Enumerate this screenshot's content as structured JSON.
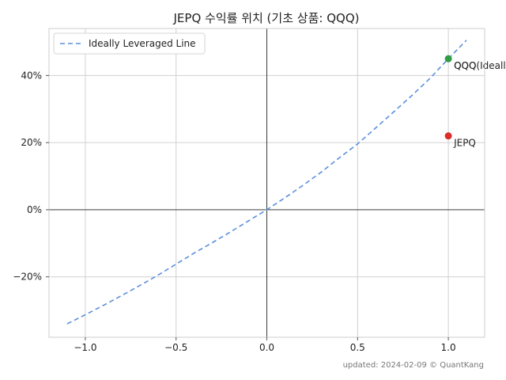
{
  "chart_data": {
    "type": "scatter",
    "title": "JEPQ 수익률 위치 (기초 상품: QQQ)",
    "xlabel": "",
    "ylabel": "",
    "xlim": [
      -1.2,
      1.2
    ],
    "ylim": [
      -38,
      54
    ],
    "x_ticks": [
      -1.0,
      -0.5,
      0.0,
      0.5,
      1.0
    ],
    "x_tick_labels": [
      "−1.0",
      "−0.5",
      "0.0",
      "0.5",
      "1.0"
    ],
    "y_ticks": [
      -20,
      0,
      20,
      40
    ],
    "y_tick_labels": [
      "−20%",
      "0%",
      "20%",
      "40%"
    ],
    "grid": true,
    "legend_position": "upper-left",
    "series": [
      {
        "name": "Ideally Leveraged Line",
        "kind": "dashed-line",
        "color": "#5b8fdb",
        "x": [
          -1.1,
          -1.0,
          -0.9,
          -0.8,
          -0.7,
          -0.6,
          -0.5,
          -0.4,
          -0.3,
          -0.2,
          -0.1,
          0.0,
          0.1,
          0.2,
          0.3,
          0.4,
          0.5,
          0.6,
          0.7,
          0.8,
          0.9,
          1.0,
          1.1
        ],
        "y": [
          -34.0,
          -31.3,
          -28.5,
          -25.6,
          -22.6,
          -19.5,
          -16.2,
          -12.9,
          -9.8,
          -6.6,
          -3.3,
          0.0,
          3.6,
          7.3,
          11.2,
          15.5,
          19.6,
          24.4,
          29.2,
          34.1,
          39.2,
          45.0,
          50.5
        ]
      }
    ],
    "points": [
      {
        "label": "QQQ",
        "x": 1.0,
        "y": 45.0,
        "color": "#2e9e44"
      },
      {
        "label": "QQQ(Ideally)",
        "x": 1.0,
        "y": 45.0,
        "color": "#2e9e44"
      },
      {
        "label": "JEPQ",
        "x": 1.0,
        "y": 22.0,
        "color": "#dd2c2c"
      }
    ]
  },
  "footer": "updated: 2024-02-09 © QuantKang"
}
